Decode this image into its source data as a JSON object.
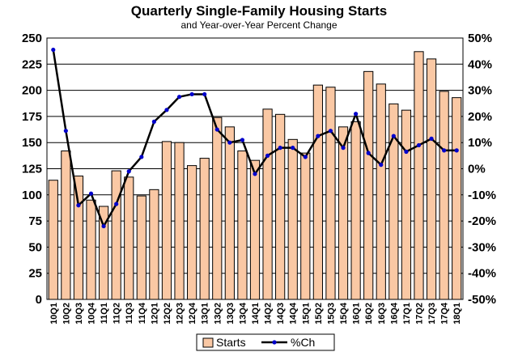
{
  "chart_data": {
    "type": "bar",
    "title": "Quarterly Single-Family Housing Starts",
    "subtitle": "and Year-over-Year Percent Change",
    "categories": [
      "10Q1",
      "10Q2",
      "10Q3",
      "10Q4",
      "11Q1",
      "11Q2",
      "11Q3",
      "11Q4",
      "12Q1",
      "12Q2",
      "12Q3",
      "12Q4",
      "13Q1",
      "13Q2",
      "13Q3",
      "13Q4",
      "14Q1",
      "14Q2",
      "14Q3",
      "14Q4",
      "15Q1",
      "15Q2",
      "15Q3",
      "15Q4",
      "16Q1",
      "16Q2",
      "16Q3",
      "16Q4",
      "17Q1",
      "17Q2",
      "17Q3",
      "17Q4",
      "18Q1"
    ],
    "series": [
      {
        "name": "Starts",
        "type": "bar",
        "axis": "left",
        "color": "#FAC8A4",
        "values": [
          114,
          142,
          118,
          95,
          89,
          123,
          117,
          99,
          105,
          151,
          150,
          128,
          135,
          174,
          165,
          142,
          133,
          182,
          177,
          153,
          140,
          205,
          203,
          165,
          170,
          218,
          206,
          187,
          181,
          237,
          230,
          199,
          193
        ]
      },
      {
        "name": "%Ch",
        "type": "line",
        "axis": "right",
        "color": "#000000",
        "marker_color": "#0000CC",
        "values": [
          45.5,
          14.5,
          -14.0,
          -9.5,
          -22.0,
          -13.5,
          -1.0,
          4.5,
          18.0,
          22.5,
          27.5,
          28.5,
          28.5,
          15.0,
          10.0,
          11.0,
          -2.0,
          5.0,
          8.0,
          8.0,
          4.5,
          12.5,
          14.5,
          8.0,
          21.0,
          6.0,
          1.5,
          12.5,
          6.5,
          9.0,
          11.5,
          7.0,
          7.0
        ]
      }
    ],
    "left_axis": {
      "min": 0,
      "max": 250,
      "step": 25,
      "ticks": [
        "0",
        "25",
        "50",
        "75",
        "100",
        "125",
        "150",
        "175",
        "200",
        "225",
        "250"
      ]
    },
    "right_axis": {
      "min": -50,
      "max": 50,
      "step": 10,
      "ticks": [
        "-50%",
        "-40%",
        "-30%",
        "-20%",
        "-10%",
        "0%",
        "10%",
        "20%",
        "30%",
        "40%",
        "50%"
      ]
    },
    "grid": true,
    "legend_position": "bottom-center"
  }
}
